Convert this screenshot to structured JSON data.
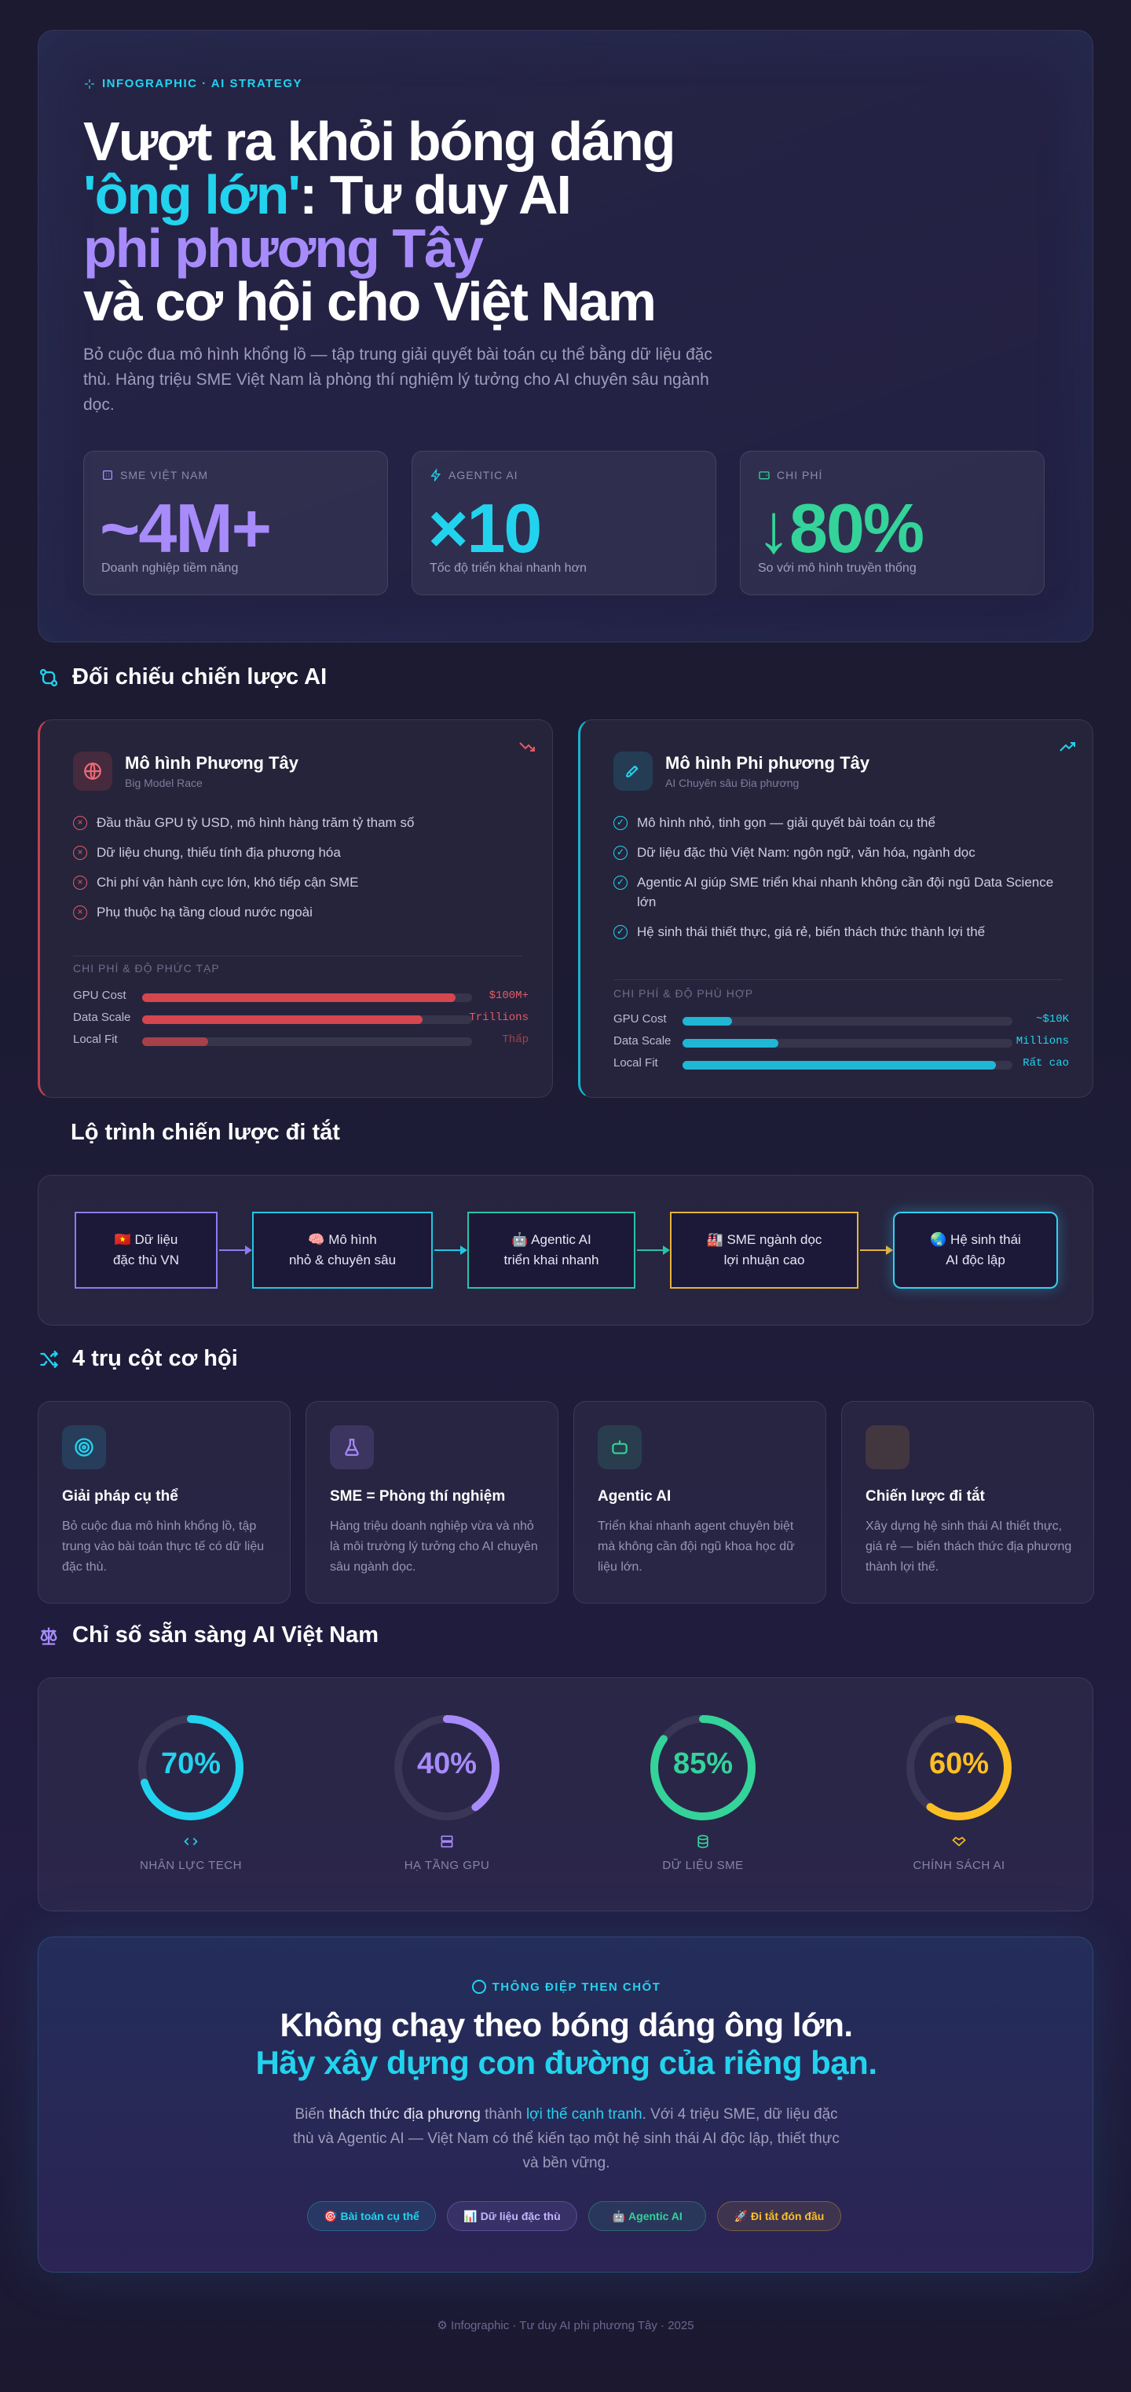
{
  "hero": {
    "eyebrow": "INFOGRAPHIC · AI STRATEGY",
    "title_l1": "Vượt ra khỏi bóng dáng",
    "title_l2_accent": "'ông lớn'",
    "title_l2_rest": ": Tư duy AI",
    "title_l3": "phi phương Tây",
    "title_l4": "và cơ hội cho Việt Nam",
    "lead": "Bỏ cuộc đua mô hình khổng lồ — tập trung giải quyết bài toán cụ thể bằng dữ liệu đặc thù. Hàng triệu SME Việt Nam là phòng thí nghiệm lý tưởng cho AI chuyên sâu ngành dọc.",
    "stats": [
      {
        "label": "SME VIỆT NAM",
        "value": "~4M+",
        "sub": "Doanh nghiệp tiềm năng",
        "color": "#a78bfa"
      },
      {
        "label": "AGENTIC AI",
        "value": "×10",
        "sub": "Tốc độ triển khai nhanh hơn",
        "color": "#22d3ee"
      },
      {
        "label": "CHI PHÍ",
        "value": "↓80%",
        "sub": "So với mô hình truyền thống",
        "color": "#34d399"
      }
    ]
  },
  "comparison": {
    "heading": "Đối chiếu chiến lược AI",
    "western": {
      "title": "Mô hình Phương Tây",
      "subtitle": "Big Model Race",
      "points": [
        "Đầu thầu GPU tỷ USD, mô hình hàng trăm tỷ tham số",
        "Dữ liệu chung, thiếu tính địa phương hóa",
        "Chi phí vận hành cực lớn, khó tiếp cận SME",
        "Phụ thuộc hạ tầng cloud nước ngoài"
      ],
      "bars_heading": "CHI PHÍ & ĐỘ PHỨC TẠP",
      "bars": [
        {
          "name": "GPU Cost",
          "value": "$100M+",
          "level": 0.95
        },
        {
          "name": "Data Scale",
          "value": "Trillions",
          "level": 0.85
        },
        {
          "name": "Local Fit",
          "value": "Thấp",
          "level": 0.2
        }
      ]
    },
    "nonwestern": {
      "title": "Mô hình Phi phương Tây",
      "subtitle": "AI Chuyên sâu Địa phương",
      "points": [
        "Mô hình nhỏ, tinh gọn — giải quyết bài toán cụ thể",
        "Dữ liệu đặc thù Việt Nam: ngôn ngữ, văn hóa, ngành dọc",
        "Agentic AI giúp SME triển khai nhanh không cần đội ngũ Data Science lớn",
        "Hệ sinh thái thiết thực, giá rẻ, biến thách thức thành lợi thế"
      ],
      "bars_heading": "CHI PHÍ & ĐỘ PHÙ HỢP",
      "bars": [
        {
          "name": "GPU Cost",
          "value": "~$10K",
          "level": 0.15
        },
        {
          "name": "Data Scale",
          "value": "Millions",
          "level": 0.29
        },
        {
          "name": "Local Fit",
          "value": "Rất cao",
          "level": 0.95
        }
      ]
    }
  },
  "roadmap": {
    "heading": "Lộ trình chiến lược đi tắt",
    "steps": [
      {
        "l1": "🇻🇳 Dữ liệu",
        "l2": "đặc thù VN",
        "color": "#8b7cf0"
      },
      {
        "l1": "🧠 Mô hình",
        "l2": "nhỏ & chuyên sâu",
        "color": "#22c7e0"
      },
      {
        "l1": "🤖 Agentic AI",
        "l2": "triển khai nhanh",
        "color": "#2bc3a8"
      },
      {
        "l1": "🏭 SME ngành dọc",
        "l2": "lợi nhuận cao",
        "color": "#e8b23c"
      },
      {
        "l1": "🌏 Hệ sinh thái",
        "l2": "AI độc lập",
        "color": "#35d0f0"
      }
    ]
  },
  "pillars": {
    "heading": "4 trụ cột cơ hội",
    "items": [
      {
        "title": "Giải pháp cụ thể",
        "desc": "Bỏ cuộc đua mô hình khổng lồ, tập trung vào bài toán thực tế có dữ liệu đặc thù.",
        "icon": "target-icon",
        "color": "#22d3ee"
      },
      {
        "title": "SME = Phòng thí nghiệm",
        "desc": "Hàng triệu doanh nghiệp vừa và nhỏ là môi trường lý tưởng cho AI chuyên sâu ngành dọc.",
        "icon": "flask-icon",
        "color": "#a78bfa"
      },
      {
        "title": "Agentic AI",
        "desc": "Triển khai nhanh agent chuyên biệt mà không cần đội ngũ khoa học dữ liệu lớn.",
        "icon": "bot-icon",
        "color": "#34d399"
      },
      {
        "title": "Chiến lược đi tắt",
        "desc": "Xây dựng hệ sinh thái AI thiết thực, giá rẻ — biến thách thức địa phương thành lợi thế.",
        "icon": "blank-icon",
        "color": "#fbbf24"
      }
    ]
  },
  "readiness": {
    "heading": "Chỉ số sẵn sàng AI Việt Nam",
    "gauges": [
      {
        "value": 70,
        "text": "70%",
        "label": "NHÂN LỰC TECH",
        "color": "#22d3ee",
        "icon": "code-icon"
      },
      {
        "value": 40,
        "text": "40%",
        "label": "HẠ TẦNG GPU",
        "color": "#a78bfa",
        "icon": "server-icon"
      },
      {
        "value": 85,
        "text": "85%",
        "label": "DỮ LIỆU SME",
        "color": "#34d399",
        "icon": "database-icon"
      },
      {
        "value": 60,
        "text": "60%",
        "label": "CHÍNH SÁCH AI",
        "color": "#fbbf24",
        "icon": "handshake-icon"
      }
    ]
  },
  "message": {
    "eyebrow": "THÔNG ĐIỆP THEN CHỐT",
    "line1": "Không chạy theo bóng dáng ông lớn.",
    "line2": "Hãy xây dựng con đường của riêng bạn.",
    "body_a": "Biến ",
    "body_b": "thách thức địa phương",
    "body_c": " thành ",
    "body_d": "lợi thế cạnh tranh",
    "body_e": ". Với 4 triệu SME, dữ liệu đặc thù và Agentic AI — Việt Nam có thể kiến tạo một hệ sinh thái AI độc lập, thiết thực và bền vững.",
    "tags": [
      {
        "label": "🎯 Bài toán cụ thể",
        "color": "#22d3ee"
      },
      {
        "label": "📊 Dữ liệu đặc thù",
        "color": "#c4b5fd"
      },
      {
        "label": "🤖 Agentic AI",
        "color": "#34d399"
      },
      {
        "label": "🚀 Đi tắt đón đầu",
        "color": "#fbbf24"
      }
    ]
  },
  "footer": "⚙ Infographic · Tư duy AI phi phương Tây · 2025"
}
